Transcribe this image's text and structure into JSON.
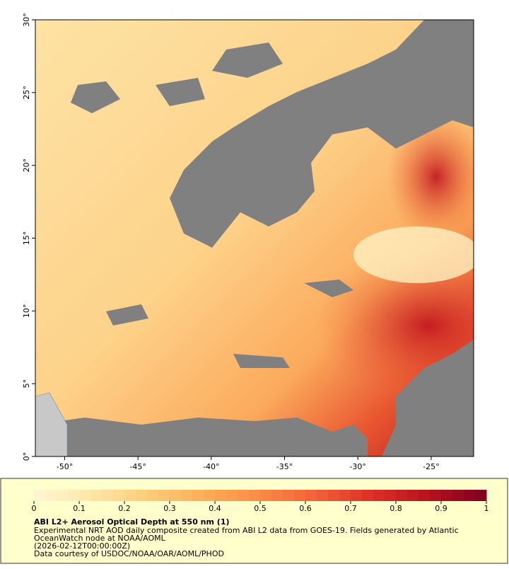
{
  "map": {
    "xlim": [
      -52,
      -22.1
    ],
    "ylim": [
      0,
      30
    ],
    "xticks": [
      {
        "value": -50,
        "label": "-50°"
      },
      {
        "value": -45,
        "label": "-45°"
      },
      {
        "value": -40,
        "label": "-40°"
      },
      {
        "value": -35,
        "label": "-35°"
      },
      {
        "value": -30,
        "label": "-30°"
      },
      {
        "value": -25,
        "label": "-25°"
      }
    ],
    "yticks": [
      {
        "value": 0,
        "label": "0°"
      },
      {
        "value": 5,
        "label": "5°"
      },
      {
        "value": 10,
        "label": "10°"
      },
      {
        "value": 15,
        "label": "15°"
      },
      {
        "value": 20,
        "label": "20°"
      },
      {
        "value": 25,
        "label": "25°"
      },
      {
        "value": 30,
        "label": "30°"
      }
    ]
  },
  "colorbar": {
    "lim": [
      0,
      1
    ],
    "ticks": [
      0,
      0.1,
      0.2,
      0.3,
      0.4,
      0.5,
      0.6,
      0.7,
      0.8,
      0.9,
      1
    ],
    "colors": [
      "#fff5d6",
      "#fee6a8",
      "#fdcc7a",
      "#fdae5a",
      "#fb8a44",
      "#f2603a",
      "#dd2e26",
      "#b5121e",
      "#7f0020"
    ]
  },
  "caption": {
    "title": "ABI L2+ Aerosol Optical Depth at 550 nm (1)",
    "lines": [
      "Experimental NRT AOD daily composite created from ABI L2 data from GOES-19. Fields generated by Atlantic",
      "OceanWatch node at NOAA/AOML",
      "(2026-02-12T00:00:00Z)",
      "Data courtesy of USDOC/NOAA/OAR/AOML/PHOD"
    ]
  }
}
